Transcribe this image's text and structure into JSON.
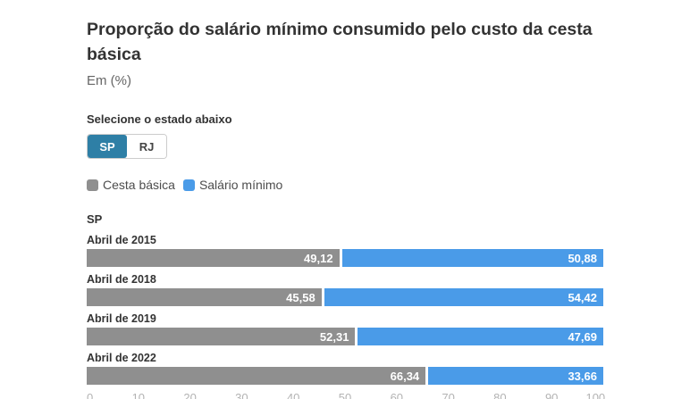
{
  "header": {
    "title": "Proporção do salário mínimo consumido pelo custo da cesta básica",
    "subtitle": "Em (%)"
  },
  "selector": {
    "label": "Selecione o estado abaixo",
    "options": [
      {
        "label": "SP",
        "selected": true
      },
      {
        "label": "RJ",
        "selected": false
      }
    ],
    "selected_color": "#2e7fa6"
  },
  "legend": [
    {
      "label": "Cesta básica",
      "color": "#8f8f8f"
    },
    {
      "label": "Salário mínimo",
      "color": "#4a9be8"
    }
  ],
  "chart_data": {
    "type": "bar",
    "orientation": "horizontal",
    "stacked": true,
    "group_label": "SP",
    "categories": [
      "Abril de 2015",
      "Abril de 2018",
      "Abril de 2019",
      "Abril de 2022"
    ],
    "series": [
      {
        "name": "Cesta básica",
        "key": "cesta-basica",
        "color": "#8f8f8f",
        "values": [
          49.12,
          45.58,
          52.31,
          66.34
        ]
      },
      {
        "name": "Salário mínimo",
        "key": "salario-minimo",
        "color": "#4a9be8",
        "values": [
          50.88,
          54.42,
          47.69,
          33.66
        ]
      }
    ],
    "value_decimal_separator": ",",
    "xlim": [
      0,
      100
    ],
    "x_ticks": [
      0,
      10,
      20,
      30,
      40,
      50,
      60,
      70,
      80,
      90,
      100
    ],
    "grid": false,
    "legend_position": "top",
    "value_labels": "inside-right"
  }
}
